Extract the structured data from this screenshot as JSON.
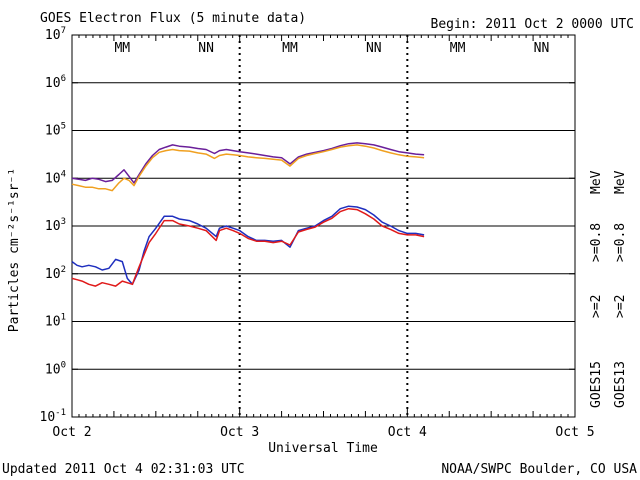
{
  "header": {
    "title": "GOES Electron Flux (5 minute data)",
    "begin": "Begin: 2011 Oct 2 0000 UTC"
  },
  "footer": {
    "updated": "Updated 2011 Oct  4 02:31:03 UTC",
    "credit": "NOAA/SWPC Boulder, CO USA"
  },
  "colors": {
    "goes15_2mev": "#1f2fbf",
    "goes13_2mev": "#e01a1a",
    "goes15_08mev": "#6a1f9a",
    "goes13_08mev": "#f0a020"
  },
  "chart_data": {
    "type": "line",
    "title": "GOES Electron Flux (5 minute data)",
    "xlabel": "Universal Time",
    "ylabel": "Particles cm⁻²s⁻¹sr⁻¹",
    "y_scale": "log",
    "ylim": [
      0.1,
      10000000
    ],
    "x_range_days": [
      0,
      3
    ],
    "grid": "horizontal at each decade",
    "x_ticks": [
      {
        "day": 0,
        "label": "Oct 2"
      },
      {
        "day": 1,
        "label": "Oct 3"
      },
      {
        "day": 2,
        "label": "Oct 4"
      },
      {
        "day": 3,
        "label": "Oct 5"
      }
    ],
    "y_ticks": [
      {
        "base": "10",
        "exp": "-1",
        "value": 0.1
      },
      {
        "base": "10",
        "exp": "0",
        "value": 1
      },
      {
        "base": "10",
        "exp": "1",
        "value": 10
      },
      {
        "base": "10",
        "exp": "2",
        "value": 100
      },
      {
        "base": "10",
        "exp": "3",
        "value": 1000
      },
      {
        "base": "10",
        "exp": "4",
        "value": 10000
      },
      {
        "base": "10",
        "exp": "5",
        "value": 100000
      },
      {
        "base": "10",
        "exp": "6",
        "value": 1000000
      },
      {
        "base": "10",
        "exp": "7",
        "value": 10000000
      }
    ],
    "threshold": {
      "value": 1000,
      "style": "dashed"
    },
    "markers": [
      {
        "day": 0.3,
        "label": "MM"
      },
      {
        "day": 0.8,
        "label": "NN"
      },
      {
        "day": 1.3,
        "label": "MM"
      },
      {
        "day": 1.8,
        "label": "NN"
      },
      {
        "day": 2.3,
        "label": "MM"
      },
      {
        "day": 2.8,
        "label": "NN"
      }
    ],
    "legend": {
      "position": "right",
      "columns": [
        {
          "text": "GOES15",
          "color": "#000000"
        },
        {
          "text": "GOES13",
          "color": "#000000"
        }
      ],
      "entries": [
        {
          "text": ">=2",
          "color": "#1f2fbf",
          "column": 0,
          "group": "2mev"
        },
        {
          "text": ">=2",
          "color": "#e01a1a",
          "column": 1,
          "group": "2mev"
        },
        {
          "text": ">=0.8",
          "color": "#6a1f9a",
          "column": 0,
          "group": "08mev"
        },
        {
          "text": ">=0.8",
          "color": "#f0a020",
          "column": 1,
          "group": "08mev"
        }
      ],
      "unit": "MeV"
    },
    "series": [
      {
        "name": "GOES15 >=2 MeV",
        "color": "#1f2fbf",
        "x": [
          0,
          0.03,
          0.06,
          0.1,
          0.14,
          0.18,
          0.22,
          0.26,
          0.3,
          0.33,
          0.36,
          0.4,
          0.43,
          0.46,
          0.5,
          0.55,
          0.6,
          0.64,
          0.7,
          0.75,
          0.8,
          0.86,
          0.88,
          0.92,
          0.96,
          1.0,
          1.05,
          1.1,
          1.15,
          1.2,
          1.25,
          1.3,
          1.35,
          1.4,
          1.45,
          1.5,
          1.55,
          1.6,
          1.65,
          1.7,
          1.75,
          1.8,
          1.85,
          1.9,
          1.95,
          2.0,
          2.05,
          2.1
        ],
        "values": [
          180,
          150,
          140,
          150,
          140,
          120,
          130,
          200,
          180,
          80,
          60,
          120,
          300,
          600,
          900,
          1600,
          1600,
          1400,
          1300,
          1100,
          900,
          600,
          900,
          1000,
          900,
          800,
          600,
          500,
          500,
          480,
          500,
          360,
          800,
          900,
          1000,
          1300,
          1600,
          2300,
          2600,
          2500,
          2200,
          1700,
          1200,
          1000,
          800,
          700,
          700,
          650
        ]
      },
      {
        "name": "GOES13 >=2 MeV",
        "color": "#e01a1a",
        "x": [
          0,
          0.03,
          0.06,
          0.1,
          0.14,
          0.18,
          0.22,
          0.26,
          0.3,
          0.33,
          0.36,
          0.4,
          0.43,
          0.46,
          0.5,
          0.55,
          0.6,
          0.64,
          0.7,
          0.75,
          0.8,
          0.86,
          0.88,
          0.92,
          0.96,
          1.0,
          1.05,
          1.1,
          1.15,
          1.2,
          1.25,
          1.3,
          1.35,
          1.4,
          1.45,
          1.5,
          1.55,
          1.6,
          1.65,
          1.7,
          1.75,
          1.8,
          1.85,
          1.9,
          1.95,
          2.0,
          2.05,
          2.1
        ],
        "values": [
          80,
          75,
          70,
          60,
          55,
          65,
          60,
          55,
          70,
          65,
          60,
          140,
          250,
          450,
          700,
          1300,
          1300,
          1100,
          1000,
          900,
          800,
          500,
          800,
          900,
          800,
          700,
          550,
          480,
          480,
          450,
          480,
          400,
          750,
          850,
          950,
          1200,
          1450,
          2000,
          2300,
          2200,
          1800,
          1400,
          1000,
          850,
          700,
          650,
          650,
          600
        ]
      },
      {
        "name": "GOES15 >=0.8 MeV",
        "color": "#6a1f9a",
        "x": [
          0,
          0.04,
          0.08,
          0.12,
          0.16,
          0.2,
          0.24,
          0.28,
          0.31,
          0.34,
          0.37,
          0.4,
          0.44,
          0.48,
          0.52,
          0.56,
          0.6,
          0.64,
          0.7,
          0.75,
          0.8,
          0.85,
          0.88,
          0.92,
          0.96,
          1.0,
          1.05,
          1.1,
          1.15,
          1.2,
          1.25,
          1.3,
          1.35,
          1.4,
          1.45,
          1.5,
          1.55,
          1.6,
          1.65,
          1.7,
          1.75,
          1.8,
          1.85,
          1.9,
          1.95,
          2.0,
          2.05,
          2.1
        ],
        "values": [
          10000,
          9500,
          9000,
          10000,
          9500,
          8500,
          9000,
          12000,
          15000,
          11000,
          8000,
          12000,
          20000,
          30000,
          40000,
          45000,
          50000,
          47000,
          45000,
          42000,
          40000,
          33000,
          38000,
          40000,
          38000,
          36000,
          34000,
          32000,
          30000,
          28000,
          27000,
          20000,
          28000,
          32000,
          35000,
          38000,
          42000,
          48000,
          53000,
          55000,
          53000,
          50000,
          45000,
          40000,
          36000,
          34000,
          32000,
          31000
        ]
      },
      {
        "name": "GOES13 >=0.8 MeV",
        "color": "#f0a020",
        "x": [
          0,
          0.04,
          0.08,
          0.12,
          0.16,
          0.2,
          0.24,
          0.28,
          0.31,
          0.34,
          0.37,
          0.4,
          0.44,
          0.48,
          0.52,
          0.56,
          0.6,
          0.64,
          0.7,
          0.75,
          0.8,
          0.85,
          0.88,
          0.92,
          0.96,
          1.0,
          1.05,
          1.1,
          1.15,
          1.2,
          1.25,
          1.3,
          1.35,
          1.4,
          1.45,
          1.5,
          1.55,
          1.6,
          1.65,
          1.7,
          1.75,
          1.8,
          1.85,
          1.9,
          1.95,
          2.0,
          2.05,
          2.1
        ],
        "values": [
          7500,
          7000,
          6500,
          6500,
          6000,
          6000,
          5500,
          8000,
          10000,
          9000,
          7000,
          11000,
          18000,
          27000,
          35000,
          38000,
          40000,
          38000,
          37000,
          34000,
          32000,
          26000,
          30000,
          32000,
          31000,
          30000,
          28000,
          27000,
          26000,
          25000,
          24000,
          18000,
          26000,
          30000,
          33000,
          36000,
          40000,
          45000,
          48000,
          50000,
          47000,
          43000,
          38000,
          34000,
          31000,
          29000,
          28000,
          27000
        ]
      }
    ]
  }
}
